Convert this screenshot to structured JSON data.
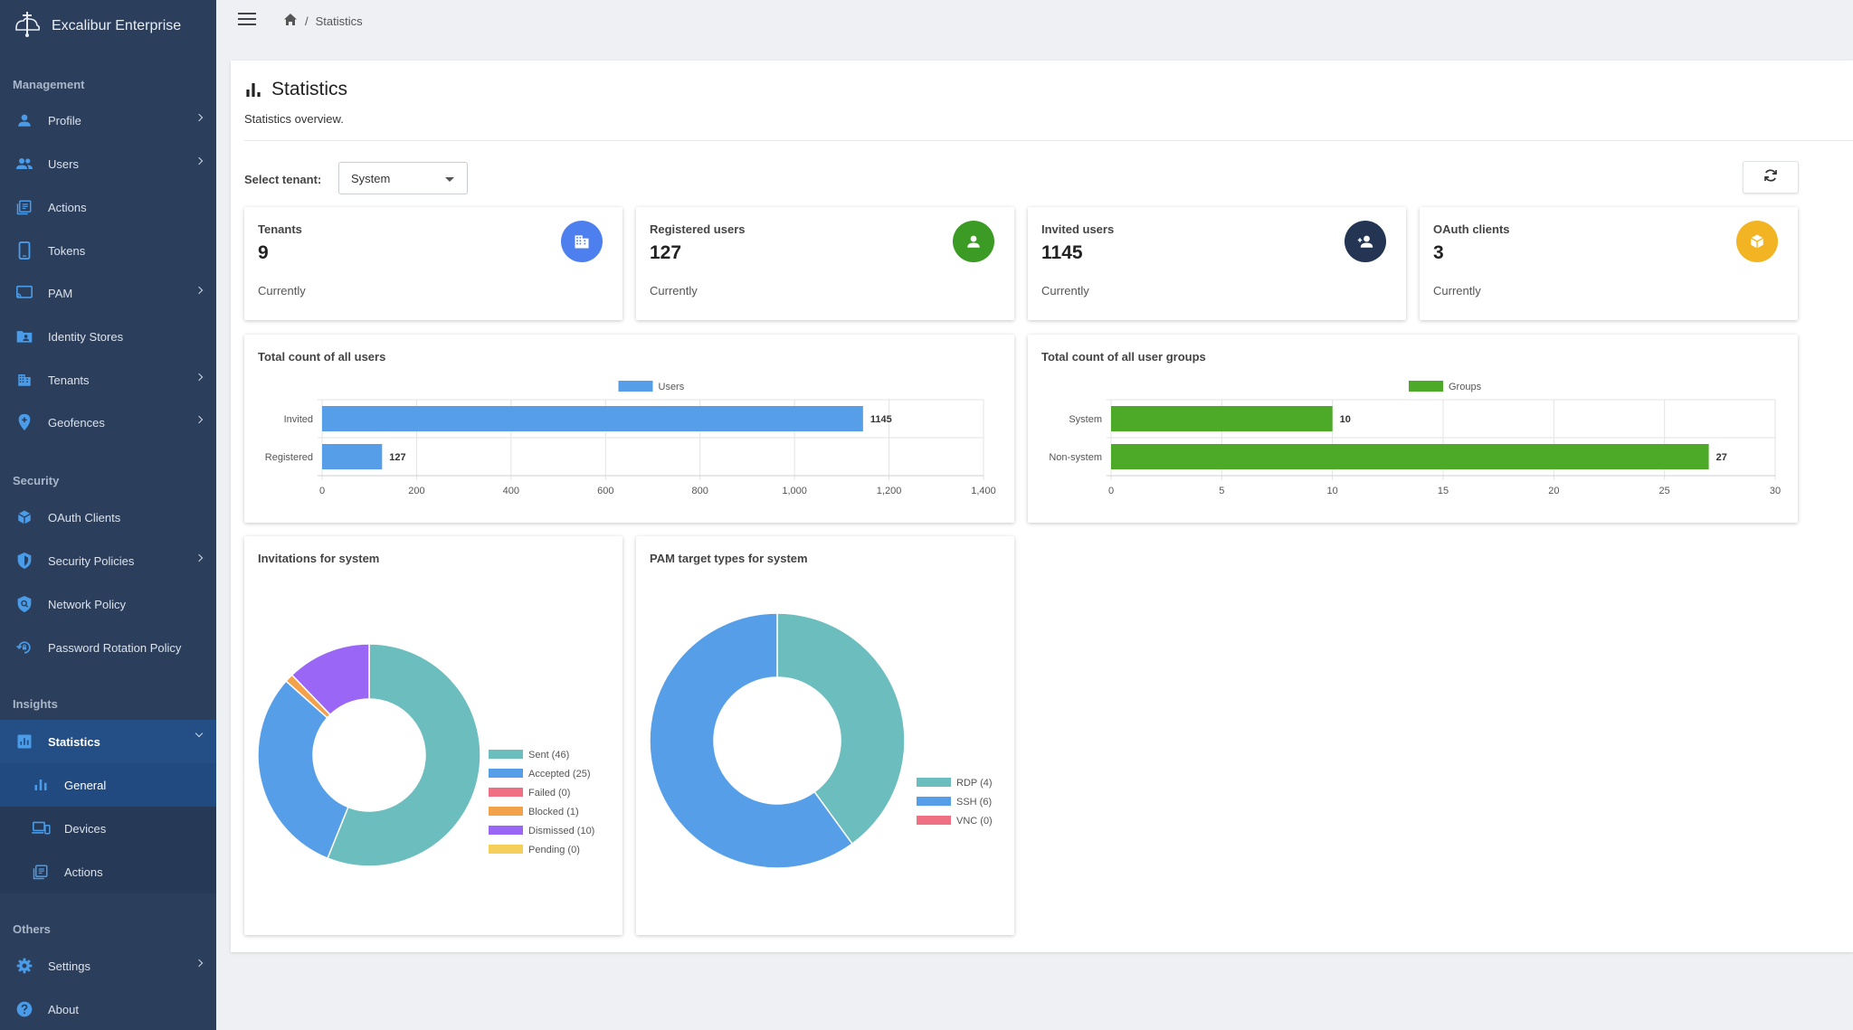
{
  "app": {
    "name": "Excalibur Enterprise"
  },
  "sidebar": {
    "sections": {
      "management": "Management",
      "security": "Security",
      "insights": "Insights",
      "others": "Others"
    },
    "items": {
      "profile": "Profile",
      "users": "Users",
      "actions": "Actions",
      "tokens": "Tokens",
      "pam": "PAM",
      "identity_stores": "Identity Stores",
      "tenants": "Tenants",
      "geofences": "Geofences",
      "oauth_clients": "OAuth Clients",
      "security_policies": "Security Policies",
      "network_policy": "Network Policy",
      "password_rotation_policy": "Password Rotation Policy",
      "statistics": "Statistics",
      "general": "General",
      "devices": "Devices",
      "insights_actions": "Actions",
      "settings": "Settings",
      "about": "About"
    }
  },
  "breadcrumb": {
    "current": "Statistics"
  },
  "page": {
    "title": "Statistics",
    "subtitle": "Statistics overview.",
    "tenant_label": "Select tenant:",
    "tenant_value": "System"
  },
  "stats": [
    {
      "label": "Tenants",
      "value": "9",
      "note": "Currently",
      "color": "#4d7fef",
      "icon": "building-icon"
    },
    {
      "label": "Registered users",
      "value": "127",
      "note": "Currently",
      "color": "#3b9b24",
      "icon": "person-icon"
    },
    {
      "label": "Invited users",
      "value": "1145",
      "note": "Currently",
      "color": "#233553",
      "icon": "person-add-icon"
    },
    {
      "label": "OAuth clients",
      "value": "3",
      "note": "Currently",
      "color": "#f2b422",
      "icon": "cube-icon"
    }
  ],
  "colors": {
    "sidebar": "#2b3e5c",
    "accent_blue": "#569fe8",
    "accent_green": "#4caa28",
    "teal": "#6cbdbd"
  },
  "chart_data": [
    {
      "type": "bar",
      "orientation": "horizontal",
      "title": "Total count of all users",
      "categories": [
        "Invited",
        "Registered"
      ],
      "series": [
        {
          "name": "Users",
          "values": [
            1145,
            127
          ],
          "color": "#569fe8"
        }
      ],
      "xlim": [
        0,
        1400
      ],
      "ticks": [
        "0",
        "200",
        "400",
        "600",
        "800",
        "1,000",
        "1,200",
        "1,400"
      ],
      "legend": "top"
    },
    {
      "type": "bar",
      "orientation": "horizontal",
      "title": "Total count of all user groups",
      "categories": [
        "System",
        "Non-system"
      ],
      "series": [
        {
          "name": "Groups",
          "values": [
            10,
            27
          ],
          "color": "#4caa28"
        }
      ],
      "xlim": [
        0,
        30
      ],
      "ticks": [
        "0",
        "5",
        "10",
        "15",
        "20",
        "25",
        "30"
      ],
      "legend": "top"
    },
    {
      "type": "pie",
      "donut": true,
      "title": "Invitations for system",
      "slices": [
        {
          "label": "Sent (46)",
          "value": 46,
          "color": "#6cbdbd"
        },
        {
          "label": "Accepted (25)",
          "value": 25,
          "color": "#569fe8"
        },
        {
          "label": "Failed (0)",
          "value": 0,
          "color": "#ef6f83"
        },
        {
          "label": "Blocked (1)",
          "value": 1,
          "color": "#f2a24a"
        },
        {
          "label": "Dismissed (10)",
          "value": 10,
          "color": "#9966f5"
        },
        {
          "label": "Pending (0)",
          "value": 0,
          "color": "#f6cf5a"
        }
      ],
      "legend": "right"
    },
    {
      "type": "pie",
      "donut": true,
      "title": "PAM target types for system",
      "slices": [
        {
          "label": "RDP (4)",
          "value": 4,
          "color": "#6cbdbd"
        },
        {
          "label": "SSH (6)",
          "value": 6,
          "color": "#569fe8"
        },
        {
          "label": "VNC (0)",
          "value": 0,
          "color": "#ef6f83"
        }
      ],
      "legend": "right"
    }
  ]
}
